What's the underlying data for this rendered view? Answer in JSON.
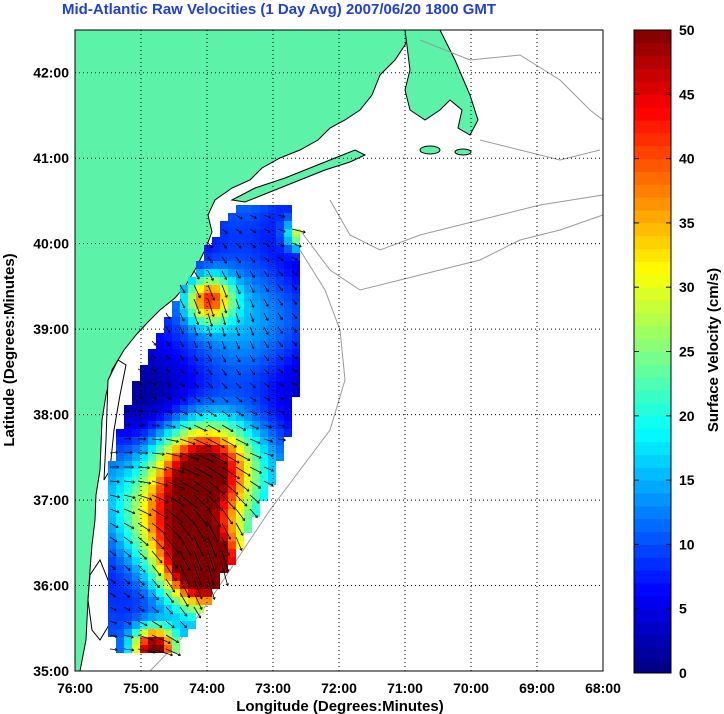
{
  "title": "Mid-Atlantic Raw Velocities (1 Day Avg) 2007/06/20 1800 GMT",
  "map": {
    "x_label": "Longitude (Degrees:Minutes)",
    "y_label": "Latitude (Degrees:Minutes)",
    "x_ticks": [
      "76:00",
      "75:00",
      "74:00",
      "73:00",
      "72:00",
      "71:00",
      "70:00",
      "69:00",
      "68:00"
    ],
    "y_ticks": [
      "42:00",
      "41:00",
      "40:00",
      "39:00",
      "38:00",
      "37:00",
      "36:00",
      "35:00"
    ],
    "lon_range": [
      -76,
      -68
    ],
    "lat_range": [
      35,
      42.5
    ],
    "grid": true,
    "land_color": "#5cf2a8",
    "coast_color": "#000000",
    "bathymetry_color": "#9a9a9a"
  },
  "colorbar": {
    "label": "Surface Velocity (cm/s)",
    "min": 0,
    "max": 50,
    "ticks": [
      "0",
      "5",
      "10",
      "15",
      "20",
      "25",
      "30",
      "35",
      "40",
      "45",
      "50"
    ],
    "colormap": "jet"
  }
}
